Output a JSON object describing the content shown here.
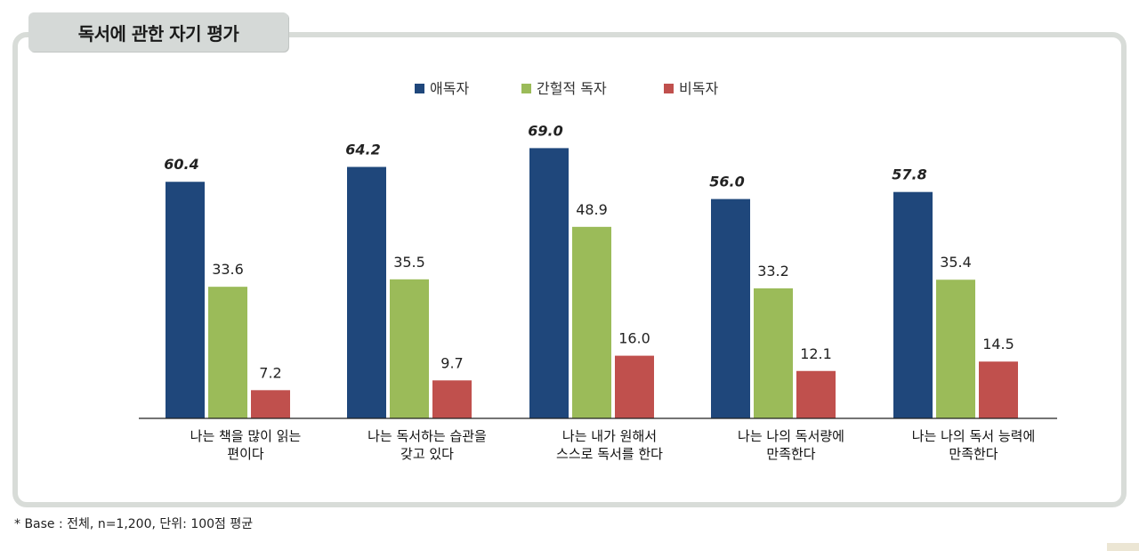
{
  "title": "독서에 관한 자기 평가",
  "footnote": "* Base : 전체, n=1,200, 단위: 100점 평균",
  "colors": {
    "avid": "#1f477b",
    "occasional": "#9bbb59",
    "non": "#c0504d"
  },
  "chart_data": {
    "type": "bar",
    "title": "독서에 관한 자기 평가",
    "categories": [
      [
        "나는 책을 많이 읽는",
        "편이다"
      ],
      [
        "나는 독서하는 습관을",
        "갖고 있다"
      ],
      [
        "나는 내가 원해서",
        "스스로 독서를 한다"
      ],
      [
        "나는 나의 독서량에",
        "만족한다"
      ],
      [
        "나는 나의 독서 능력에",
        "만족한다"
      ]
    ],
    "series": [
      {
        "name": "애독자",
        "values": [
          60.4,
          64.2,
          69.0,
          56.0,
          57.8
        ]
      },
      {
        "name": "간헐적 독자",
        "values": [
          33.6,
          35.5,
          48.9,
          33.2,
          35.4
        ]
      },
      {
        "name": "비독자",
        "values": [
          7.2,
          9.7,
          16.0,
          12.1,
          14.5
        ]
      }
    ],
    "ylim": [
      0,
      69
    ],
    "legend_position": "top-center",
    "grid": false
  }
}
